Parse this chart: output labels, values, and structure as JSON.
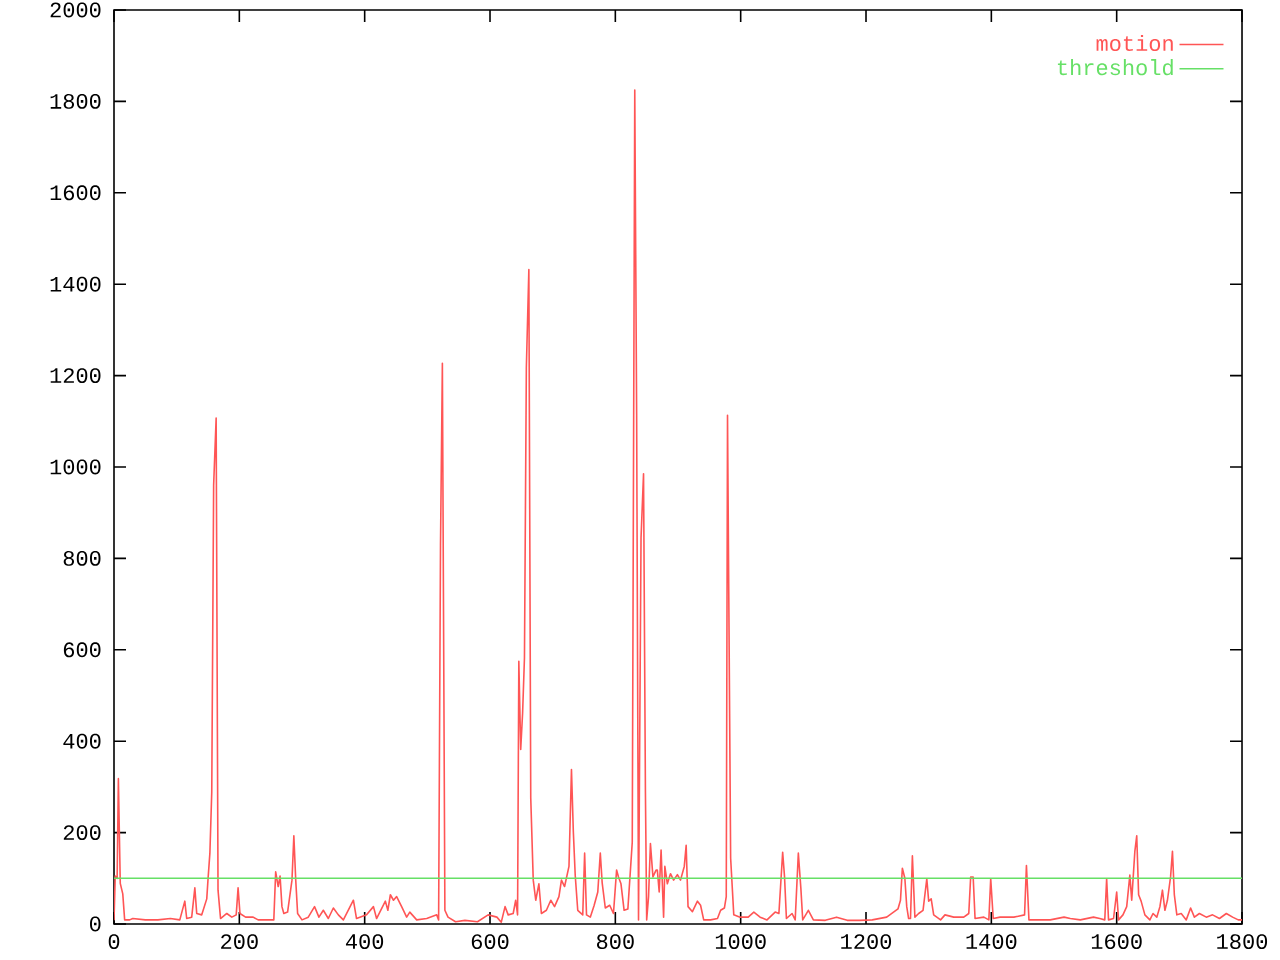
{
  "chart_data": {
    "type": "line",
    "xlim": [
      0,
      1800
    ],
    "ylim": [
      0,
      2000
    ],
    "xticks": [
      0,
      200,
      400,
      600,
      800,
      1000,
      1200,
      1400,
      1600,
      1800
    ],
    "yticks": [
      0,
      200,
      400,
      600,
      800,
      1000,
      1200,
      1400,
      1600,
      1800,
      2000
    ],
    "legend": "top right",
    "series": [
      {
        "name": "motion",
        "color": "#ff5555",
        "x": [
          0,
          2,
          5,
          7,
          10,
          14,
          17,
          25,
          30,
          50,
          70,
          90,
          105,
          113,
          116,
          124,
          129,
          132,
          140,
          148,
          150,
          153,
          156,
          159,
          163,
          166,
          170,
          180,
          188,
          195,
          198,
          201,
          210,
          222,
          230,
          255,
          258,
          262,
          265,
          268,
          271,
          277,
          284,
          287,
          290,
          293,
          300,
          310,
          320,
          327,
          334,
          342,
          350,
          358,
          366,
          382,
          387,
          403,
          414,
          419,
          433,
          437,
          441,
          446,
          451,
          459,
          467,
          472,
          483,
          499,
          515,
          518,
          521,
          524,
          528,
          533,
          545,
          560,
          580,
          597,
          611,
          618,
          624,
          629,
          637,
          641,
          644,
          646,
          649,
          652,
          655,
          658,
          662,
          665,
          669,
          673,
          678,
          682,
          690,
          697,
          703,
          710,
          714,
          719,
          726,
          730,
          733,
          736,
          740,
          748,
          751,
          754,
          760,
          766,
          772,
          776,
          779,
          784,
          791,
          797,
          802,
          805,
          809,
          814,
          820,
          827,
          831,
          834,
          837,
          841,
          845,
          848,
          850,
          853,
          856,
          860,
          865,
          867,
          870,
          873,
          877,
          879,
          883,
          888,
          893,
          899,
          904,
          910,
          913,
          916,
          923,
          931,
          936,
          941,
          952,
          963,
          968,
          974,
          977,
          979,
          981,
          984,
          989,
          999,
          1012,
          1021,
          1031,
          1042,
          1055,
          1061,
          1067,
          1070,
          1073,
          1082,
          1087,
          1092,
          1096,
          1099,
          1108,
          1116,
          1135,
          1153,
          1170,
          1190,
          1210,
          1233,
          1251,
          1255,
          1258,
          1262,
          1265,
          1268,
          1271,
          1274,
          1278,
          1284,
          1291,
          1297,
          1300,
          1304,
          1308,
          1319,
          1326,
          1340,
          1356,
          1364,
          1367,
          1371,
          1374,
          1388,
          1396,
          1399,
          1403,
          1414,
          1436,
          1453,
          1456,
          1460,
          1478,
          1494,
          1516,
          1526,
          1542,
          1563,
          1573,
          1581,
          1584,
          1587,
          1595,
          1600,
          1603,
          1610,
          1616,
          1621,
          1624,
          1629,
          1632,
          1635,
          1639,
          1645,
          1653,
          1658,
          1664,
          1669,
          1673,
          1677,
          1681,
          1686,
          1689,
          1692,
          1696,
          1703,
          1711,
          1718,
          1724,
          1732,
          1743,
          1753,
          1764,
          1775,
          1785,
          1794,
          1800
        ],
        "values": [
          8,
          105,
          100,
          318,
          89,
          66,
          9,
          9,
          12,
          9,
          9,
          12,
          9,
          50,
          12,
          15,
          79,
          23,
          20,
          55,
          97,
          155,
          289,
          960,
          1107,
          74,
          12,
          23,
          15,
          20,
          79,
          23,
          15,
          15,
          9,
          9,
          114,
          82,
          105,
          38,
          23,
          26,
          96,
          193,
          96,
          23,
          9,
          15,
          38,
          15,
          30,
          12,
          35,
          20,
          9,
          52,
          12,
          20,
          38,
          12,
          50,
          30,
          64,
          52,
          60,
          38,
          15,
          26,
          9,
          12,
          20,
          9,
          829,
          1227,
          30,
          15,
          5,
          8,
          5,
          20,
          15,
          4,
          38,
          20,
          23,
          52,
          20,
          575,
          382,
          461,
          583,
          1217,
          1432,
          276,
          96,
          52,
          88,
          23,
          30,
          52,
          38,
          60,
          96,
          82,
          126,
          338,
          201,
          106,
          30,
          20,
          155,
          20,
          15,
          40,
          70,
          155,
          90,
          35,
          41,
          23,
          118,
          103,
          88,
          30,
          33,
          179,
          1825,
          1116,
          9,
          845,
          985,
          289,
          9,
          60,
          176,
          103,
          118,
          118,
          70,
          162,
          15,
          126,
          88,
          110,
          96,
          108,
          96,
          126,
          172,
          38,
          27,
          50,
          41,
          9,
          9,
          12,
          30,
          35,
          60,
          1113,
          726,
          144,
          20,
          15,
          15,
          26,
          15,
          9,
          26,
          23,
          157,
          103,
          12,
          23,
          9,
          155,
          79,
          9,
          30,
          9,
          8,
          15,
          8,
          8,
          9,
          15,
          33,
          52,
          122,
          100,
          38,
          12,
          12,
          149,
          15,
          23,
          30,
          99,
          50,
          55,
          20,
          9,
          20,
          15,
          15,
          23,
          103,
          103,
          12,
          15,
          9,
          99,
          12,
          15,
          15,
          20,
          128,
          9,
          9,
          9,
          15,
          12,
          9,
          15,
          12,
          9,
          99,
          9,
          12,
          70,
          9,
          20,
          38,
          107,
          52,
          159,
          193,
          64,
          50,
          20,
          9,
          23,
          15,
          38,
          74,
          30,
          52,
          103,
          159,
          64,
          20,
          23,
          9,
          35,
          15,
          23,
          15,
          20,
          12,
          23,
          15,
          9,
          9
        ]
      },
      {
        "name": "threshold",
        "color": "#66e066",
        "x": [
          0,
          1800
        ],
        "values": [
          100,
          100
        ]
      }
    ]
  }
}
